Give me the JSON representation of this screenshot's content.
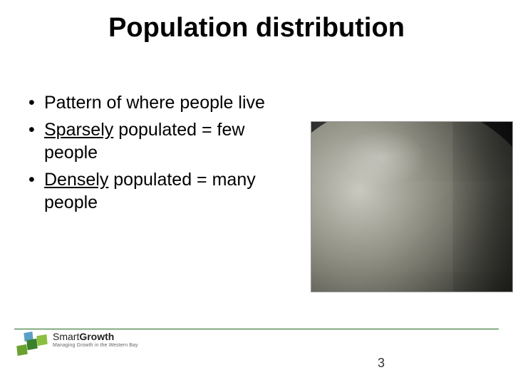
{
  "title": "Population distribution",
  "bullets": [
    {
      "pre": "",
      "u": "",
      "post": "Pattern of where people live"
    },
    {
      "pre": "",
      "u": "Sparsely",
      "post": " populated = few people"
    },
    {
      "pre": "",
      "u": "Densely",
      "post": " populated = many people"
    }
  ],
  "logo": {
    "brand_smart": "Smart",
    "brand_growth": "Growth",
    "tagline": "Managing Growth in the Western Bay"
  },
  "page_number": "3",
  "colors": {
    "rule": "#1f6b1f",
    "text": "#000000",
    "bg": "#ffffff"
  }
}
